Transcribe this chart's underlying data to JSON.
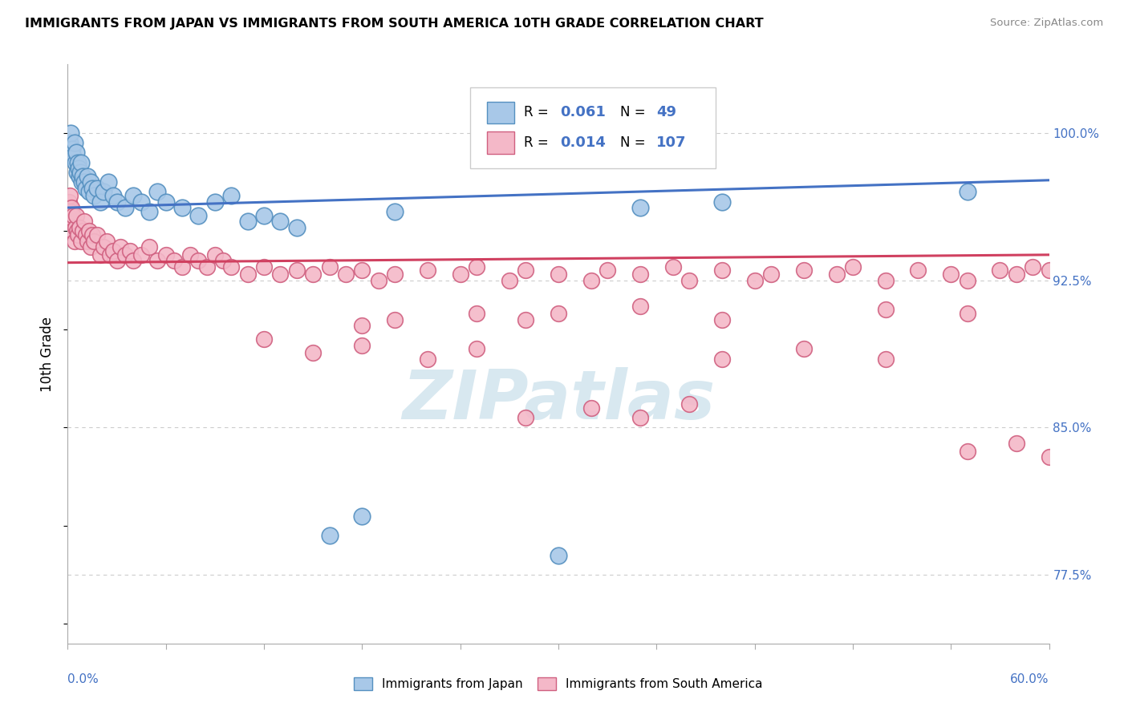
{
  "title": "IMMIGRANTS FROM JAPAN VS IMMIGRANTS FROM SOUTH AMERICA 10TH GRADE CORRELATION CHART",
  "source": "Source: ZipAtlas.com",
  "ylabel": "10th Grade",
  "xlim": [
    0.0,
    60.0
  ],
  "ylim": [
    74.0,
    103.5
  ],
  "yticks_right": [
    77.5,
    85.0,
    92.5,
    100.0
  ],
  "ytick_labels_right": [
    "77.5%",
    "85.0%",
    "92.5%",
    "100.0%"
  ],
  "japan_color": "#a8c8e8",
  "japan_edge_color": "#5590c0",
  "sa_color": "#f4b8c8",
  "sa_edge_color": "#d06080",
  "trend_japan_color": "#4472c4",
  "trend_sa_color": "#d04060",
  "watermark_color": "#d8e8f0",
  "japan_x": [
    0.15,
    0.2,
    0.3,
    0.35,
    0.4,
    0.45,
    0.5,
    0.55,
    0.6,
    0.65,
    0.7,
    0.75,
    0.8,
    0.85,
    0.9,
    1.0,
    1.1,
    1.2,
    1.3,
    1.4,
    1.5,
    1.6,
    1.8,
    2.0,
    2.2,
    2.5,
    2.8,
    3.0,
    3.5,
    4.0,
    4.5,
    5.0,
    5.5,
    6.0,
    7.0,
    8.0,
    9.0,
    10.0,
    11.0,
    12.0,
    13.0,
    14.0,
    16.0,
    18.0,
    20.0,
    30.0,
    35.0,
    40.0,
    55.0
  ],
  "japan_y": [
    99.5,
    100.0,
    99.2,
    98.8,
    99.5,
    98.5,
    99.0,
    98.0,
    98.5,
    98.2,
    97.8,
    98.0,
    98.5,
    97.5,
    97.8,
    97.5,
    97.2,
    97.8,
    97.0,
    97.5,
    97.2,
    96.8,
    97.2,
    96.5,
    97.0,
    97.5,
    96.8,
    96.5,
    96.2,
    96.8,
    96.5,
    96.0,
    97.0,
    96.5,
    96.2,
    95.8,
    96.5,
    96.8,
    95.5,
    95.8,
    95.5,
    95.2,
    79.5,
    80.5,
    96.0,
    78.5,
    96.2,
    96.5,
    97.0
  ],
  "sa_x": [
    0.05,
    0.08,
    0.1,
    0.12,
    0.15,
    0.18,
    0.2,
    0.25,
    0.3,
    0.35,
    0.4,
    0.45,
    0.5,
    0.55,
    0.6,
    0.7,
    0.8,
    0.9,
    1.0,
    1.1,
    1.2,
    1.3,
    1.4,
    1.5,
    1.6,
    1.8,
    2.0,
    2.2,
    2.4,
    2.6,
    2.8,
    3.0,
    3.2,
    3.5,
    3.8,
    4.0,
    4.5,
    5.0,
    5.5,
    6.0,
    6.5,
    7.0,
    7.5,
    8.0,
    8.5,
    9.0,
    9.5,
    10.0,
    11.0,
    12.0,
    13.0,
    14.0,
    15.0,
    16.0,
    17.0,
    18.0,
    19.0,
    20.0,
    22.0,
    24.0,
    25.0,
    27.0,
    28.0,
    30.0,
    32.0,
    33.0,
    35.0,
    37.0,
    38.0,
    40.0,
    42.0,
    43.0,
    45.0,
    47.0,
    48.0,
    50.0,
    52.0,
    54.0,
    55.0,
    57.0,
    58.0,
    59.0,
    60.0,
    30.0,
    35.0,
    40.0,
    50.0,
    55.0,
    18.0,
    20.0,
    25.0,
    28.0,
    40.0,
    45.0,
    50.0,
    55.0,
    58.0,
    60.0,
    12.0,
    15.0,
    18.0,
    22.0,
    25.0,
    28.0,
    32.0,
    35.0,
    38.0
  ],
  "sa_y": [
    95.8,
    96.0,
    96.5,
    96.2,
    96.8,
    96.0,
    95.5,
    96.2,
    95.0,
    95.8,
    94.5,
    95.2,
    95.8,
    95.0,
    94.8,
    95.2,
    94.5,
    95.0,
    95.5,
    94.8,
    94.5,
    95.0,
    94.2,
    94.8,
    94.5,
    94.8,
    93.8,
    94.2,
    94.5,
    93.8,
    94.0,
    93.5,
    94.2,
    93.8,
    94.0,
    93.5,
    93.8,
    94.2,
    93.5,
    93.8,
    93.5,
    93.2,
    93.8,
    93.5,
    93.2,
    93.8,
    93.5,
    93.2,
    92.8,
    93.2,
    92.8,
    93.0,
    92.8,
    93.2,
    92.8,
    93.0,
    92.5,
    92.8,
    93.0,
    92.8,
    93.2,
    92.5,
    93.0,
    92.8,
    92.5,
    93.0,
    92.8,
    93.2,
    92.5,
    93.0,
    92.5,
    92.8,
    93.0,
    92.8,
    93.2,
    92.5,
    93.0,
    92.8,
    92.5,
    93.0,
    92.8,
    93.2,
    93.0,
    90.8,
    91.2,
    90.5,
    91.0,
    90.8,
    90.2,
    90.5,
    90.8,
    90.5,
    88.5,
    89.0,
    88.5,
    83.8,
    84.2,
    83.5,
    89.5,
    88.8,
    89.2,
    88.5,
    89.0,
    85.5,
    86.0,
    85.5,
    86.2
  ]
}
